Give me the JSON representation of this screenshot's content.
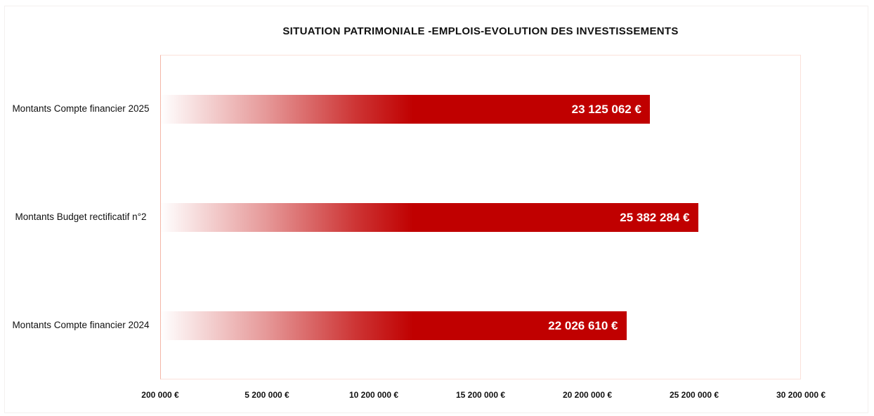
{
  "chart_data": {
    "type": "bar",
    "orientation": "horizontal",
    "title": "SITUATION PATRIMONIALE -EMPLOIS-EVOLUTION DES INVESTISSEMENTS",
    "categories": [
      "Montants Compte financier 2025",
      "Montants Budget rectificatif n°2",
      "Montants Compte financier 2024"
    ],
    "values": [
      23125062,
      25382284,
      22026610
    ],
    "value_labels": [
      "23 125 062 €",
      "25 382 284 €",
      "22 026 610 €"
    ],
    "color": "#c00000",
    "xlim": [
      200000,
      30200000
    ],
    "xticks": [
      {
        "value": 200000,
        "label": "200 000 €"
      },
      {
        "value": 5200000,
        "label": "5 200 000 €"
      },
      {
        "value": 10200000,
        "label": "10 200 000 €"
      },
      {
        "value": 15200000,
        "label": "15 200 000 €"
      },
      {
        "value": 20200000,
        "label": "20 200 000 €"
      },
      {
        "value": 25200000,
        "label": "25 200 000 €"
      },
      {
        "value": 30200000,
        "label": "30 200 000 €"
      }
    ],
    "grid": false
  }
}
